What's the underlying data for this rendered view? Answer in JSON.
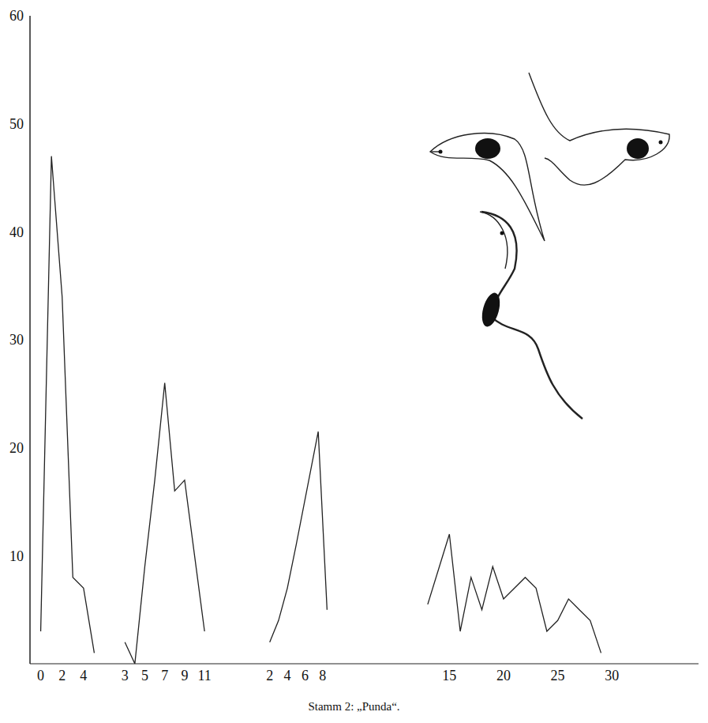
{
  "title": "Stamm 2: „Punda“.",
  "chart_data": [
    {
      "type": "line",
      "x": [
        0,
        1,
        2,
        3,
        4,
        5
      ],
      "values": [
        3,
        47,
        34,
        8,
        7,
        1
      ],
      "color": "#222222",
      "xlim": [
        -1,
        6
      ],
      "xticks": [
        0,
        2,
        4
      ],
      "ylim": [
        0,
        60
      ],
      "yticks": [
        10,
        20,
        30,
        40,
        50,
        60
      ]
    },
    {
      "type": "line",
      "x": [
        3,
        4,
        5,
        6,
        7,
        8,
        9,
        10,
        11
      ],
      "values": [
        2,
        0,
        9,
        17,
        26,
        16,
        17,
        10,
        3
      ],
      "color": "#222222",
      "xlim": [
        1,
        14
      ],
      "xticks": [
        3,
        5,
        7,
        9,
        11
      ],
      "ylim": [
        0,
        60
      ],
      "yticks": [
        10,
        20,
        30,
        40,
        50,
        60
      ],
      "tick_labels": "x"
    },
    {
      "type": "line",
      "x": [
        2,
        3,
        4,
        5,
        7.5,
        8.5
      ],
      "values": [
        2,
        4,
        7,
        11,
        21.5,
        5
      ],
      "color": "#222222",
      "xlim": [
        -2,
        15
      ],
      "xticks": [
        2,
        4,
        6,
        8
      ],
      "ylim": [
        0,
        60
      ],
      "yticks": [
        10,
        20,
        30,
        40,
        50,
        60
      ],
      "tick_labels": "x"
    },
    {
      "type": "line",
      "x": [
        13,
        15,
        16,
        17,
        18,
        19,
        20,
        22,
        23,
        24,
        25,
        26,
        27,
        28,
        29
      ],
      "values": [
        5.5,
        12,
        3,
        8,
        5,
        9,
        6,
        8,
        7,
        3,
        4,
        6,
        5,
        4,
        1
      ],
      "color": "#222222",
      "xlim": [
        9,
        38
      ],
      "xticks": [
        15,
        20,
        25,
        30
      ],
      "ylim": [
        0,
        60
      ],
      "yticks": [
        10,
        20,
        30,
        40,
        50,
        60
      ],
      "tick_labels": "x"
    }
  ]
}
